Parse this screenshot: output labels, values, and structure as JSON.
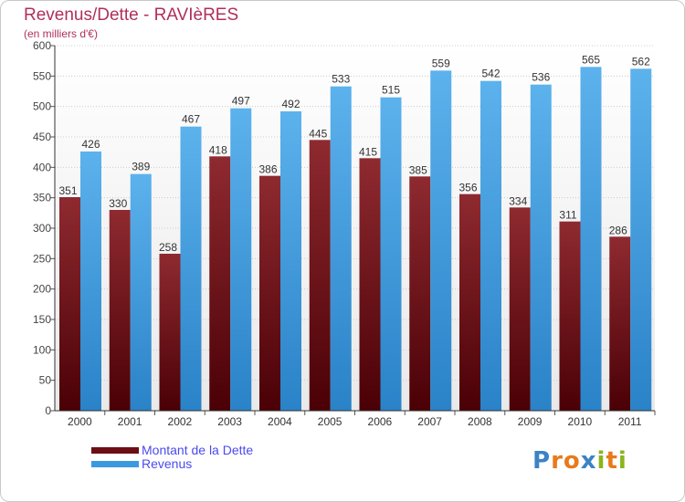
{
  "header": {
    "title": "Revenus/Dette - RAVIèRES",
    "subtitle": "(en milliers d'€)"
  },
  "colors": {
    "dette": "#7a1018",
    "revenus": "#3a9ae0",
    "title": "#b0305a",
    "legend_text": "#4a4af0"
  },
  "legend": {
    "items": [
      {
        "label": "Montant de la Dette",
        "color": "#6b0f14"
      },
      {
        "label": "Revenus",
        "color": "#3a9ae0"
      }
    ]
  },
  "logo": {
    "text": "Proxiti",
    "letters": [
      {
        "ch": "P",
        "color": "#3b83c4"
      },
      {
        "ch": "r",
        "color": "#e87a1c"
      },
      {
        "ch": "o",
        "color": "#e87a1c"
      },
      {
        "ch": "x",
        "color": "#3b83c4"
      },
      {
        "ch": "i",
        "color": "#8ab51e"
      },
      {
        "ch": "t",
        "color": "#e87a1c"
      },
      {
        "ch": "i",
        "color": "#8ab51e"
      }
    ]
  },
  "chart_data": {
    "type": "bar",
    "title": "Revenus/Dette - RAVIèRES",
    "subtitle": "(en milliers d'€)",
    "categories": [
      "2000",
      "2001",
      "2002",
      "2003",
      "2004",
      "2005",
      "2006",
      "2007",
      "2008",
      "2009",
      "2010",
      "2011"
    ],
    "series": [
      {
        "name": "Montant de la Dette",
        "values": [
          351,
          330,
          258,
          418,
          386,
          445,
          415,
          385,
          356,
          334,
          311,
          286
        ]
      },
      {
        "name": "Revenus",
        "values": [
          426,
          389,
          467,
          497,
          492,
          533,
          515,
          559,
          542,
          536,
          565,
          562
        ]
      }
    ],
    "ylim": [
      0,
      600
    ],
    "yticks": [
      0,
      50,
      100,
      150,
      200,
      250,
      300,
      350,
      400,
      450,
      500,
      550,
      600
    ],
    "grid": true,
    "legend_position": "bottom-left"
  }
}
